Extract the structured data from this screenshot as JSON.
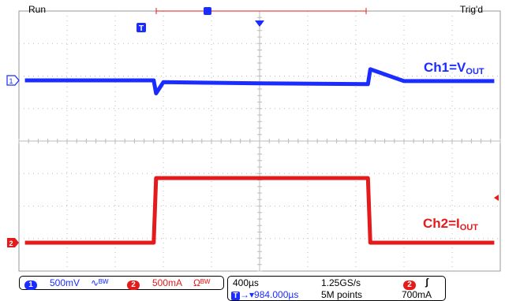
{
  "status": {
    "run": "Run",
    "trigger_state": "Trig'd"
  },
  "markers": {
    "trigger_t": "T",
    "ch1_marker": "1",
    "ch2_marker": "2"
  },
  "annotations": {
    "ch1": {
      "prefix": "Ch1=V",
      "sub": "OUT"
    },
    "ch2": {
      "prefix": "Ch2=I",
      "sub": "OUT"
    }
  },
  "channels": [
    {
      "id": "1",
      "scale": "500mV",
      "coupling": "∿ᴮᵂ",
      "color": "#1a2cff"
    },
    {
      "id": "2",
      "scale": "500mA",
      "coupling": "Ωᴮᵂ",
      "color": "#e31b1b"
    }
  ],
  "timebase": {
    "time_per_div": "400µs",
    "sample_rate": "1.25GS/s",
    "trigger_channel": "2",
    "trigger_slope": "ʃ",
    "trigger_level": "700mA",
    "trigger_icon": "T",
    "position": "→▾984.000µs",
    "record_length": "5M points"
  },
  "colors": {
    "ch1": "#1a2cff",
    "ch2": "#e31b1b",
    "grid": "#bbbbbb",
    "text": "#000000"
  },
  "chart_data": {
    "type": "line",
    "x": [
      -1.95,
      -0.88,
      -0.86,
      -0.8,
      0.0,
      0.9,
      0.92,
      1.2,
      1.95
    ],
    "series": [
      {
        "name": "Ch1=VOUT",
        "values": [
          0.0,
          0.0,
          -0.35,
          -0.05,
          -0.08,
          -0.1,
          0.3,
          -0.02,
          -0.02
        ]
      },
      {
        "name": "Ch2=IOUT",
        "values": [
          0.0,
          0.0,
          1.0,
          1.0,
          1.0,
          1.0,
          0.0,
          0.0,
          0.0
        ]
      }
    ]
  }
}
